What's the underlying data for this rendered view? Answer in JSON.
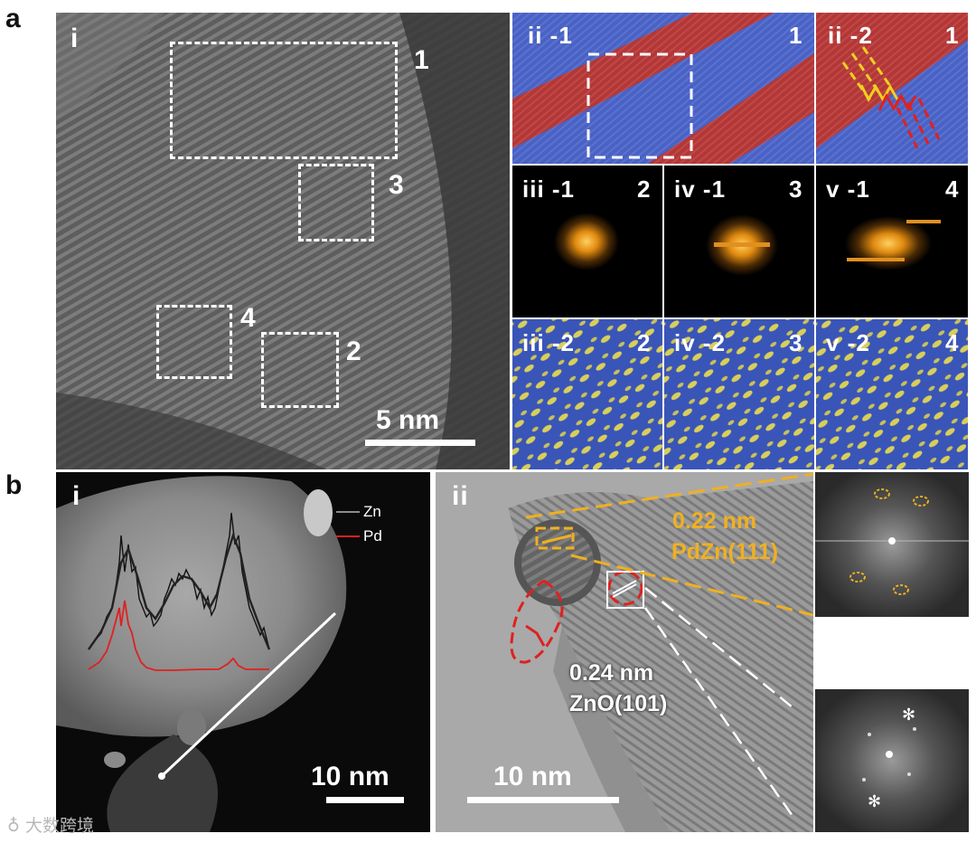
{
  "panel_a": {
    "letter": "a",
    "main": {
      "label": "i",
      "roi_numbers": [
        "1",
        "3",
        "4",
        "2"
      ],
      "scale_bar": "5 nm"
    },
    "tiles": [
      {
        "label": "ii -1",
        "num": "1"
      },
      {
        "label": "ii -2",
        "num": "1"
      },
      {
        "label": "iii -1",
        "num": "2"
      },
      {
        "label": "iv -1",
        "num": "3"
      },
      {
        "label": "v -1",
        "num": "4"
      },
      {
        "label": "iii -2",
        "num": "2"
      },
      {
        "label": "iv -2",
        "num": "3"
      },
      {
        "label": "v -2",
        "num": "4"
      }
    ]
  },
  "panel_b": {
    "letter": "b",
    "left": {
      "label": "i",
      "legend": [
        {
          "name": "Zn",
          "color": "#8c8c8c"
        },
        {
          "name": "Pd",
          "color": "#e02020"
        }
      ],
      "scale_bar": "10 nm"
    },
    "right": {
      "label": "ii",
      "d1_value": "0.22 nm",
      "d1_plane": "PdZn(111)",
      "d2_value": "0.24 nm",
      "d2_plane": "ZnO(101)",
      "scale_bar": "10 nm"
    }
  },
  "watermark": "大数跨境",
  "colors": {
    "annotation_amber": "#f0b020",
    "red_marker": "#e02020",
    "stripe_red": "#b83a3a",
    "stripe_blue": "#4a5fc0"
  }
}
